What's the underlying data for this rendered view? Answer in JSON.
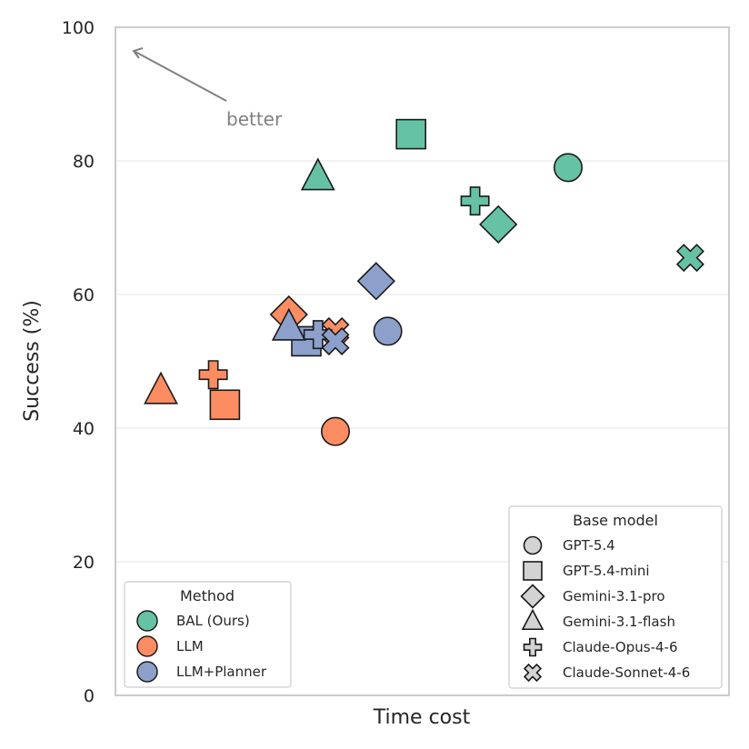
{
  "chart_data": {
    "type": "scatter",
    "xlabel": "Time cost",
    "ylabel": "Success (%)",
    "ylim": [
      0,
      100
    ],
    "yticks": [
      "0",
      "20",
      "40",
      "60",
      "80",
      "100"
    ],
    "x_ticks_shown": false,
    "grid": "horizontal",
    "annotation": "better",
    "colors": {
      "BAL (Ours)": "#66c2a5",
      "LLM": "#fc8d62",
      "LLM+Planner": "#8da0cb"
    },
    "legend_method": {
      "title": "Method",
      "placement": "lower-left",
      "entries": [
        "BAL (Ours)",
        "LLM",
        "LLM+Planner"
      ]
    },
    "legend_model": {
      "title": "Base model",
      "placement": "lower-right",
      "entries": [
        {
          "label": "GPT-5.4",
          "marker": "circle"
        },
        {
          "label": "GPT-5.4-mini",
          "marker": "square"
        },
        {
          "label": "Gemini-3.1-pro",
          "marker": "diamond"
        },
        {
          "label": "Gemini-3.1-flash",
          "marker": "triangle"
        },
        {
          "label": "Claude-Opus-4-6",
          "marker": "plus"
        },
        {
          "label": "Claude-Sonnet-4-6",
          "marker": "x"
        }
      ]
    },
    "x_units_note": "relative",
    "points": [
      {
        "method": "BAL (Ours)",
        "model": "GPT-5.4",
        "x": 0.75,
        "y": 79.0
      },
      {
        "method": "BAL (Ours)",
        "model": "GPT-5.4-mini",
        "x": 0.48,
        "y": 84.0
      },
      {
        "method": "BAL (Ours)",
        "model": "Gemini-3.1-pro",
        "x": 0.63,
        "y": 70.5
      },
      {
        "method": "BAL (Ours)",
        "model": "Gemini-3.1-flash",
        "x": 0.32,
        "y": 77.5
      },
      {
        "method": "BAL (Ours)",
        "model": "Claude-Opus-4-6",
        "x": 0.59,
        "y": 74.0
      },
      {
        "method": "BAL (Ours)",
        "model": "Claude-Sonnet-4-6",
        "x": 0.96,
        "y": 65.5
      },
      {
        "method": "LLM",
        "model": "GPT-5.4",
        "x": 0.35,
        "y": 39.5
      },
      {
        "method": "LLM",
        "model": "GPT-5.4-mini",
        "x": 0.16,
        "y": 43.5
      },
      {
        "method": "LLM",
        "model": "Gemini-3.1-pro",
        "x": 0.27,
        "y": 57.0
      },
      {
        "method": "LLM",
        "model": "Gemini-3.1-flash",
        "x": 0.05,
        "y": 45.5
      },
      {
        "method": "LLM",
        "model": "Claude-Opus-4-6",
        "x": 0.14,
        "y": 48.0
      },
      {
        "method": "LLM",
        "model": "Claude-Sonnet-4-6",
        "x": 0.35,
        "y": 54.5
      },
      {
        "method": "LLM+Planner",
        "model": "GPT-5.4",
        "x": 0.44,
        "y": 54.5
      },
      {
        "method": "LLM+Planner",
        "model": "GPT-5.4-mini",
        "x": 0.3,
        "y": 53.0
      },
      {
        "method": "LLM+Planner",
        "model": "Gemini-3.1-pro",
        "x": 0.42,
        "y": 62.0
      },
      {
        "method": "LLM+Planner",
        "model": "Gemini-3.1-flash",
        "x": 0.27,
        "y": 55.0
      },
      {
        "method": "LLM+Planner",
        "model": "Claude-Opus-4-6",
        "x": 0.32,
        "y": 54.0
      },
      {
        "method": "LLM+Planner",
        "model": "Claude-Sonnet-4-6",
        "x": 0.35,
        "y": 53.0
      }
    ]
  }
}
